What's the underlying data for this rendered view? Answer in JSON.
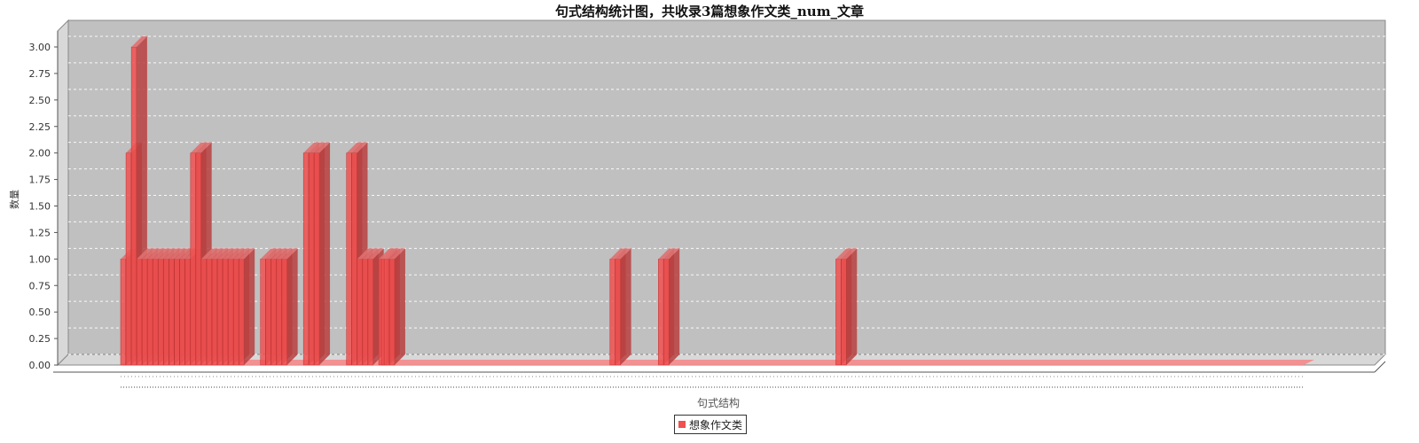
{
  "chart_data": {
    "type": "bar",
    "title": "句式结构统计图，共收录3篇想象作文类_num_文章",
    "xlabel": "句式结构",
    "ylabel": "数量",
    "ylim": [
      0,
      3
    ],
    "yticks": [
      "0.00",
      "0.25",
      "0.50",
      "0.75",
      "1.00",
      "1.25",
      "1.50",
      "1.75",
      "2.00",
      "2.25",
      "2.50",
      "2.75",
      "3.00"
    ],
    "grid": true,
    "three_d": true,
    "legend_position": "bottom",
    "colors": {
      "bar": "#f05050",
      "plot_background": "#c0c0c0",
      "grid": "#ffffff"
    },
    "category_labels_visible": false,
    "category_count": 220,
    "series": [
      {
        "name": "想象作文类",
        "points": [
          {
            "index": 0,
            "value": 1
          },
          {
            "index": 1,
            "value": 2
          },
          {
            "index": 2,
            "value": 3
          },
          {
            "index": 3,
            "value": 1
          },
          {
            "index": 4,
            "value": 1
          },
          {
            "index": 5,
            "value": 1
          },
          {
            "index": 6,
            "value": 1
          },
          {
            "index": 7,
            "value": 1
          },
          {
            "index": 8,
            "value": 1
          },
          {
            "index": 9,
            "value": 1
          },
          {
            "index": 10,
            "value": 1
          },
          {
            "index": 11,
            "value": 1
          },
          {
            "index": 12,
            "value": 1
          },
          {
            "index": 13,
            "value": 2
          },
          {
            "index": 14,
            "value": 2
          },
          {
            "index": 15,
            "value": 1
          },
          {
            "index": 16,
            "value": 1
          },
          {
            "index": 17,
            "value": 1
          },
          {
            "index": 18,
            "value": 1
          },
          {
            "index": 19,
            "value": 1
          },
          {
            "index": 20,
            "value": 1
          },
          {
            "index": 21,
            "value": 1
          },
          {
            "index": 22,
            "value": 1
          },
          {
            "index": 26,
            "value": 1
          },
          {
            "index": 27,
            "value": 1
          },
          {
            "index": 28,
            "value": 1
          },
          {
            "index": 29,
            "value": 1
          },
          {
            "index": 30,
            "value": 1
          },
          {
            "index": 34,
            "value": 2
          },
          {
            "index": 35,
            "value": 2
          },
          {
            "index": 36,
            "value": 2
          },
          {
            "index": 42,
            "value": 2
          },
          {
            "index": 43,
            "value": 2
          },
          {
            "index": 44,
            "value": 1
          },
          {
            "index": 45,
            "value": 1
          },
          {
            "index": 46,
            "value": 1
          },
          {
            "index": 48,
            "value": 1
          },
          {
            "index": 49,
            "value": 1
          },
          {
            "index": 50,
            "value": 1
          },
          {
            "index": 48.5,
            "value": 1
          },
          {
            "index": 91,
            "value": 1
          },
          {
            "index": 92,
            "value": 1
          },
          {
            "index": 100,
            "value": 1
          },
          {
            "index": 101,
            "value": 1
          },
          {
            "index": 133,
            "value": 1
          },
          {
            "index": 134,
            "value": 1
          }
        ]
      }
    ]
  }
}
